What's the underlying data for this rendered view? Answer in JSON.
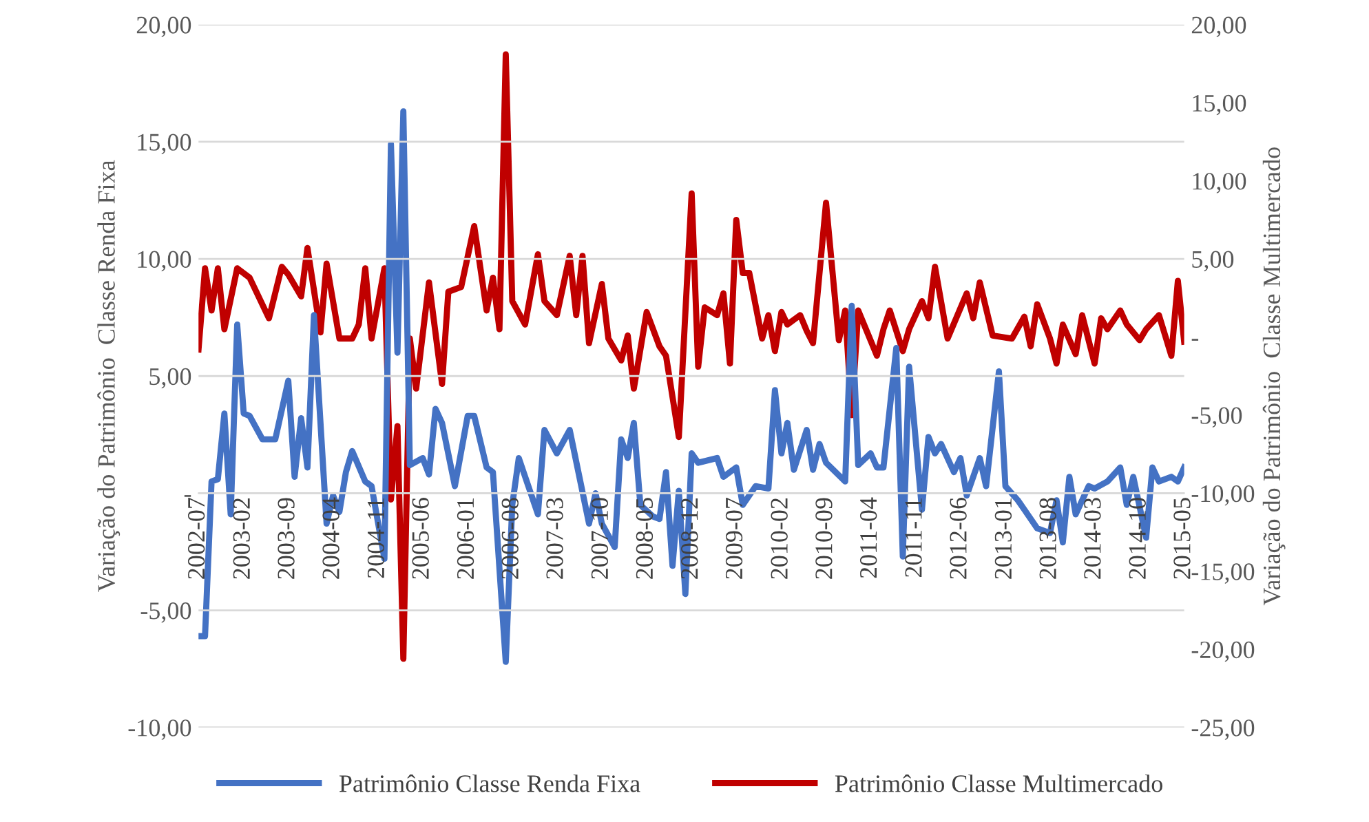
{
  "chart_data": {
    "type": "line",
    "ylabel": "Variação do Patrimônio  Classe Renda Fixa",
    "y2label": "Variação do Patrimônio  Classe Multimercado",
    "xlim": [
      "2002-07",
      "2015-05"
    ],
    "xticks": [
      "2002-07",
      "2003-02",
      "2003-09",
      "2004-04",
      "2004-11",
      "2005-06",
      "2006-01",
      "2006-08",
      "2007-03",
      "2007-10",
      "2008-05",
      "2008-12",
      "2009-07",
      "2010-02",
      "2010-09",
      "2011-04",
      "2011-11",
      "2012-06",
      "2013-01",
      "2013-08",
      "2014-03",
      "2014-10",
      "2015-05"
    ],
    "ylim": [
      -10,
      20
    ],
    "yticks": [
      {
        "value": -10,
        "label": "-10,00"
      },
      {
        "value": -5,
        "label": "-5,00"
      },
      {
        "value": 0,
        "label": "-"
      },
      {
        "value": 5,
        "label": "5,00"
      },
      {
        "value": 10,
        "label": "10,00"
      },
      {
        "value": 15,
        "label": "15,00"
      },
      {
        "value": 20,
        "label": "20,00"
      }
    ],
    "y2lim": [
      -25,
      20
    ],
    "y2ticks": [
      {
        "value": -25,
        "label": "-25,00"
      },
      {
        "value": -20,
        "label": "-20,00"
      },
      {
        "value": -15,
        "label": "-15,00"
      },
      {
        "value": -10,
        "label": "-10,00"
      },
      {
        "value": -5,
        "label": "-5,00"
      },
      {
        "value": 0,
        "label": "-"
      },
      {
        "value": 5,
        "label": "5,00"
      },
      {
        "value": 10,
        "label": "10,00"
      },
      {
        "value": 15,
        "label": "15,00"
      },
      {
        "value": 20,
        "label": "20,00"
      }
    ],
    "grid": "y",
    "legend": "bottom",
    "line_style": "solid",
    "marker": "none",
    "series": [
      {
        "name": "Patrimônio Classe Renda Fixa",
        "color": "#4472c4",
        "x": [
          "2002-07",
          "2002-08",
          "2002-09",
          "2002-10",
          "2002-11",
          "2002-12",
          "2003-01",
          "2003-02",
          "2003-03",
          "2003-05",
          "2003-07",
          "2003-09",
          "2003-10",
          "2003-11",
          "2003-12",
          "2004-01",
          "2004-03",
          "2004-04",
          "2004-05",
          "2004-06",
          "2004-07",
          "2004-09",
          "2004-10",
          "2004-12",
          "2005-01",
          "2005-02",
          "2005-03",
          "2005-04",
          "2005-06",
          "2005-07",
          "2005-08",
          "2005-09",
          "2005-11",
          "2006-01",
          "2006-02",
          "2006-04",
          "2006-05",
          "2006-07",
          "2006-08",
          "2006-09",
          "2006-12",
          "2007-01",
          "2007-03",
          "2007-05",
          "2007-08",
          "2007-09",
          "2007-10",
          "2007-12",
          "2008-01",
          "2008-02",
          "2008-03",
          "2008-04",
          "2008-06",
          "2008-07",
          "2008-08",
          "2008-09",
          "2008-10",
          "2008-11",
          "2008-12",
          "2009-01",
          "2009-04",
          "2009-05",
          "2009-07",
          "2009-08",
          "2009-10",
          "2009-12",
          "2010-01",
          "2010-02",
          "2010-03",
          "2010-04",
          "2010-06",
          "2010-07",
          "2010-08",
          "2010-09",
          "2010-12",
          "2011-01",
          "2011-02",
          "2011-04",
          "2011-05",
          "2011-06",
          "2011-08",
          "2011-09",
          "2011-10",
          "2011-12",
          "2012-01",
          "2012-02",
          "2012-03",
          "2012-05",
          "2012-06",
          "2012-07",
          "2012-09",
          "2012-10",
          "2012-12",
          "2013-01",
          "2013-03",
          "2013-04",
          "2013-06",
          "2013-08",
          "2013-09",
          "2013-10",
          "2013-11",
          "2013-12",
          "2014-02",
          "2014-03",
          "2014-05",
          "2014-07",
          "2014-08",
          "2014-09",
          "2014-11",
          "2014-12",
          "2015-01",
          "2015-03",
          "2015-04",
          "2015-05"
        ],
        "values": [
          -6.1,
          -6.1,
          0.5,
          0.6,
          3.4,
          -0.9,
          7.2,
          3.4,
          3.3,
          2.3,
          2.3,
          4.8,
          0.7,
          3.2,
          1.1,
          7.6,
          -1.3,
          -0.1,
          -0.8,
          0.9,
          1.8,
          0.5,
          0.3,
          -2.8,
          14.9,
          6.0,
          16.3,
          1.2,
          1.5,
          0.8,
          3.6,
          3.0,
          0.3,
          3.3,
          3.3,
          1.1,
          0.9,
          -7.2,
          -0.5,
          1.5,
          -0.9,
          2.7,
          1.7,
          2.7,
          -1.3,
          0.0,
          -1.3,
          -2.3,
          2.3,
          1.5,
          3.0,
          -0.5,
          -1.0,
          -1.1,
          0.9,
          -3.1,
          0.1,
          -4.3,
          1.7,
          1.3,
          1.5,
          0.7,
          1.1,
          -0.5,
          0.3,
          0.2,
          4.4,
          1.7,
          3.0,
          1.0,
          2.7,
          1.0,
          2.1,
          1.3,
          0.5,
          8.0,
          1.2,
          1.7,
          1.1,
          1.1,
          6.2,
          -2.7,
          5.4,
          -0.7,
          2.4,
          1.7,
          2.1,
          0.9,
          1.5,
          -0.1,
          1.5,
          0.3,
          5.2,
          0.3,
          -0.3,
          -0.7,
          -1.5,
          -1.7,
          -0.3,
          -2.1,
          0.7,
          -0.9,
          0.3,
          0.2,
          0.5,
          1.1,
          -0.5,
          0.7,
          -1.9,
          1.1,
          0.5,
          0.7,
          0.5,
          1.1
        ]
      },
      {
        "name": "Patrimônio Classe Multimercado",
        "color": "#c00000",
        "axis": "y2",
        "x": [
          "2002-07",
          "2002-08",
          "2002-09",
          "2002-10",
          "2002-11",
          "2003-01",
          "2003-03",
          "2003-06",
          "2003-08",
          "2003-09",
          "2003-11",
          "2003-12",
          "2004-02",
          "2004-03",
          "2004-05",
          "2004-07",
          "2004-08",
          "2004-09",
          "2004-10",
          "2004-12",
          "2005-01",
          "2005-02",
          "2005-03",
          "2005-04",
          "2005-05",
          "2005-07",
          "2005-09",
          "2005-10",
          "2005-12",
          "2006-02",
          "2006-04",
          "2006-05",
          "2006-06",
          "2006-07",
          "2006-08",
          "2006-10",
          "2006-12",
          "2007-01",
          "2007-03",
          "2007-05",
          "2007-06",
          "2007-07",
          "2007-08",
          "2007-10",
          "2007-11",
          "2008-01",
          "2008-02",
          "2008-03",
          "2008-05",
          "2008-07",
          "2008-08",
          "2008-10",
          "2008-12",
          "2009-01",
          "2009-02",
          "2009-04",
          "2009-05",
          "2009-06",
          "2009-07",
          "2009-08",
          "2009-09",
          "2009-11",
          "2009-12",
          "2010-01",
          "2010-02",
          "2010-03",
          "2010-05",
          "2010-06",
          "2010-07",
          "2010-09",
          "2010-11",
          "2010-12",
          "2011-01",
          "2011-02",
          "2011-05",
          "2011-06",
          "2011-07",
          "2011-09",
          "2011-10",
          "2011-12",
          "2012-01",
          "2012-02",
          "2012-04",
          "2012-07",
          "2012-08",
          "2012-09",
          "2012-11",
          "2013-02",
          "2013-04",
          "2013-05",
          "2013-06",
          "2013-08",
          "2013-09",
          "2013-10",
          "2013-12",
          "2014-01",
          "2014-03",
          "2014-04",
          "2014-05",
          "2014-07",
          "2014-08",
          "2014-10",
          "2014-11",
          "2015-01",
          "2015-03",
          "2015-04",
          "2015-05"
        ],
        "values": [
          -0.8,
          4.4,
          1.7,
          4.4,
          0.5,
          4.4,
          3.8,
          1.2,
          4.5,
          4.0,
          2.6,
          5.7,
          0.3,
          4.7,
          -0.1,
          -0.1,
          0.8,
          4.4,
          -0.1,
          4.4,
          -10.4,
          -5.7,
          -20.6,
          -0.1,
          -3.3,
          3.5,
          -3.0,
          2.9,
          3.2,
          7.1,
          1.7,
          3.8,
          0.5,
          18.1,
          2.3,
          0.8,
          5.3,
          2.3,
          1.4,
          5.2,
          1.4,
          5.2,
          -0.4,
          3.4,
          -0.1,
          -1.5,
          0.1,
          -3.3,
          1.6,
          -0.6,
          -1.2,
          -6.4,
          9.2,
          -1.9,
          1.9,
          1.4,
          2.8,
          -1.7,
          7.5,
          4.1,
          4.1,
          -0.1,
          1.4,
          -0.9,
          1.6,
          0.8,
          1.4,
          0.4,
          -0.4,
          8.6,
          -0.2,
          1.7,
          -5.0,
          1.7,
          -1.2,
          0.5,
          1.7,
          -0.9,
          0.5,
          2.3,
          1.2,
          4.5,
          -0.1,
          2.8,
          1.2,
          3.5,
          0.1,
          -0.1,
          1.3,
          -0.6,
          2.1,
          -0.1,
          -1.7,
          0.8,
          -1.1,
          1.4,
          -1.7,
          1.2,
          0.5,
          1.7,
          0.8,
          -0.2,
          0.5,
          1.4,
          -1.2,
          3.6,
          -0.3
        ]
      }
    ]
  }
}
